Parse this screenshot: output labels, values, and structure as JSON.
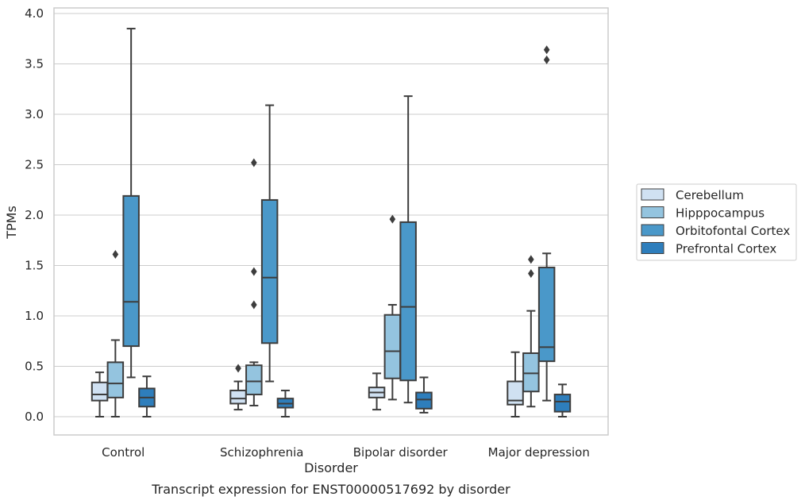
{
  "chart_data": {
    "type": "box",
    "xlabel": "Disorder",
    "ylabel": "TPMs",
    "caption": "Transcript expression for ENST00000517692 by disorder",
    "ylim": [
      -0.18,
      4.05
    ],
    "yticks": [
      "0.0",
      "0.5",
      "1.0",
      "1.5",
      "2.0",
      "2.5",
      "3.0",
      "3.5",
      "4.0"
    ],
    "ytick_values": [
      0,
      0.5,
      1.0,
      1.5,
      2.0,
      2.5,
      3.0,
      3.5,
      4.0
    ],
    "grid": "horizontal",
    "legend_position": "right",
    "categories": [
      "Control",
      "Schizophrenia",
      "Bipolar disorder",
      "Major depression"
    ],
    "series": [
      {
        "name": "Cerebellum",
        "color": "#d0e1f2",
        "boxes": [
          {
            "min": 0.0,
            "q1": 0.16,
            "median": 0.22,
            "q3": 0.34,
            "max": 0.44,
            "outliers": []
          },
          {
            "min": 0.07,
            "q1": 0.13,
            "median": 0.18,
            "q3": 0.26,
            "max": 0.35,
            "outliers": [
              0.48
            ]
          },
          {
            "min": 0.07,
            "q1": 0.19,
            "median": 0.24,
            "q3": 0.29,
            "max": 0.43,
            "outliers": []
          },
          {
            "min": 0.0,
            "q1": 0.12,
            "median": 0.16,
            "q3": 0.35,
            "max": 0.64,
            "outliers": []
          }
        ]
      },
      {
        "name": "Hipppocampus",
        "color": "#94c4df",
        "boxes": [
          {
            "min": 0.0,
            "q1": 0.19,
            "median": 0.33,
            "q3": 0.54,
            "max": 0.76,
            "outliers": [
              1.61
            ]
          },
          {
            "min": 0.11,
            "q1": 0.22,
            "median": 0.35,
            "q3": 0.51,
            "max": 0.54,
            "outliers": [
              1.11,
              1.44,
              2.52
            ]
          },
          {
            "min": 0.17,
            "q1": 0.38,
            "median": 0.65,
            "q3": 1.01,
            "max": 1.11,
            "outliers": [
              1.96
            ]
          },
          {
            "min": 0.1,
            "q1": 0.25,
            "median": 0.43,
            "q3": 0.63,
            "max": 1.05,
            "outliers": [
              1.42,
              1.56
            ]
          }
        ]
      },
      {
        "name": "Orbitofontal Cortex",
        "color": "#4a98c9",
        "boxes": [
          {
            "min": 0.39,
            "q1": 0.7,
            "median": 1.14,
            "q3": 2.19,
            "max": 3.85,
            "outliers": []
          },
          {
            "min": 0.35,
            "q1": 0.73,
            "median": 1.38,
            "q3": 2.15,
            "max": 3.09,
            "outliers": []
          },
          {
            "min": 0.14,
            "q1": 0.36,
            "median": 1.09,
            "q3": 1.93,
            "max": 3.18,
            "outliers": []
          },
          {
            "min": 0.16,
            "q1": 0.55,
            "median": 0.69,
            "q3": 1.48,
            "max": 1.62,
            "outliers": [
              3.54,
              3.64
            ]
          }
        ]
      },
      {
        "name": "Prefrontal Cortex",
        "color": "#2e7ebc",
        "boxes": [
          {
            "min": 0.0,
            "q1": 0.1,
            "median": 0.19,
            "q3": 0.28,
            "max": 0.4,
            "outliers": []
          },
          {
            "min": 0.0,
            "q1": 0.09,
            "median": 0.13,
            "q3": 0.18,
            "max": 0.26,
            "outliers": []
          },
          {
            "min": 0.04,
            "q1": 0.08,
            "median": 0.17,
            "q3": 0.24,
            "max": 0.39,
            "outliers": []
          },
          {
            "min": 0.0,
            "q1": 0.05,
            "median": 0.15,
            "q3": 0.22,
            "max": 0.32,
            "outliers": []
          }
        ]
      }
    ]
  }
}
